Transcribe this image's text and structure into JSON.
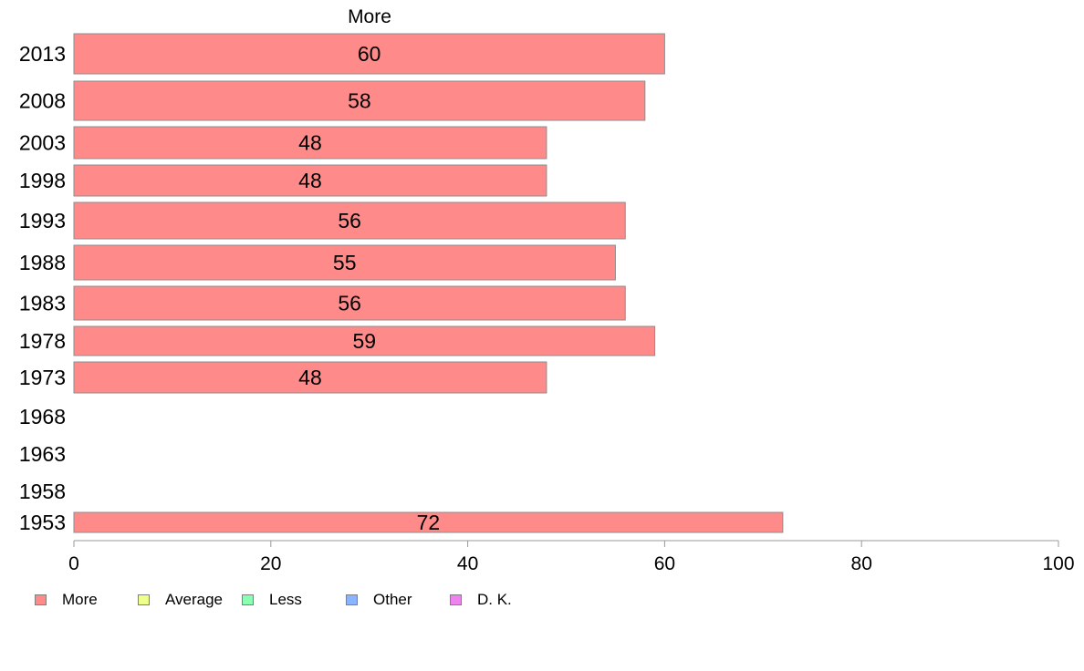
{
  "chart_data": {
    "type": "bar",
    "orientation": "horizontal",
    "title": "More",
    "categories": [
      "2013",
      "2008",
      "2003",
      "1998",
      "1993",
      "1988",
      "1983",
      "1978",
      "1973",
      "1968",
      "1963",
      "1958",
      "1953"
    ],
    "series": [
      {
        "name": "More",
        "values": [
          60,
          58,
          48,
          48,
          56,
          55,
          56,
          59,
          48,
          null,
          null,
          null,
          72
        ],
        "color": "#ff8a8a"
      }
    ],
    "xlim": [
      0,
      100
    ],
    "xticks": [
      0,
      20,
      40,
      60,
      80,
      100
    ],
    "grid": false,
    "legend_position": "bottom-left",
    "legend": [
      {
        "label": "More",
        "color": "#ff8a8a"
      },
      {
        "label": "Average",
        "color": "#eeff8a"
      },
      {
        "label": "Less",
        "color": "#8affb4"
      },
      {
        "label": "Other",
        "color": "#8ab4ff"
      },
      {
        "label": "D. K.",
        "color": "#ee82ee"
      }
    ]
  }
}
